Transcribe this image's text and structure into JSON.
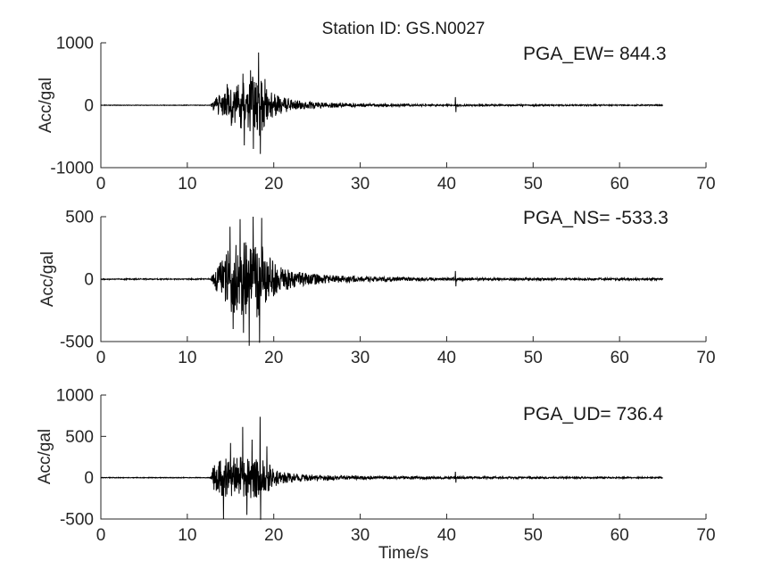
{
  "chart_data": {
    "type": "line",
    "title": "Station ID: GS.N0027",
    "xlabel": "Time/s",
    "xlim": [
      0,
      70
    ],
    "xticks": [
      0,
      10,
      20,
      30,
      40,
      50,
      60,
      70
    ],
    "grid": false,
    "legend": "none",
    "background_color": "#ffffff",
    "axis_color": "#262626",
    "trace_color": "#000000",
    "data_end_time_s": 65,
    "event_onset_time_s": 13,
    "glitch_spike_time_s": 41,
    "sample_dt_s": 0.03,
    "subplots": [
      {
        "id": "EW",
        "ylabel": "Acc/gal",
        "annotation": "PGA_EW= 844.3",
        "pga_gal": 844.3,
        "ylim": [
          -1000,
          1000
        ],
        "yticks": [
          -1000,
          0,
          1000
        ],
        "seed": 11,
        "envelope_t_amp": [
          [
            0,
            4
          ],
          [
            12.7,
            4
          ],
          [
            13,
            80
          ],
          [
            14,
            200
          ],
          [
            14.8,
            300
          ],
          [
            15.5,
            280
          ],
          [
            16.3,
            380
          ],
          [
            17,
            380
          ],
          [
            17.7,
            480
          ],
          [
            18.4,
            560
          ],
          [
            18.8,
            350
          ],
          [
            19.5,
            220
          ],
          [
            20.5,
            150
          ],
          [
            22,
            90
          ],
          [
            24,
            55
          ],
          [
            26,
            40
          ],
          [
            28,
            32
          ],
          [
            30,
            25
          ],
          [
            33,
            20
          ],
          [
            36,
            16
          ],
          [
            40,
            14
          ],
          [
            44,
            12
          ],
          [
            48,
            11
          ],
          [
            55,
            10
          ],
          [
            60,
            9
          ],
          [
            65,
            8
          ]
        ],
        "peaks_t_value": [
          [
            14.6,
            340
          ],
          [
            15.1,
            -330
          ],
          [
            16.45,
            505
          ],
          [
            16.6,
            -643
          ],
          [
            17.3,
            560
          ],
          [
            17.65,
            -700
          ],
          [
            18.25,
            844.3
          ],
          [
            18.45,
            -780
          ],
          [
            19.0,
            420
          ],
          [
            41.0,
            130
          ],
          [
            41.08,
            -110
          ]
        ]
      },
      {
        "id": "NS",
        "ylabel": "Acc/gal",
        "annotation": "PGA_NS= -533.3",
        "pga_gal": -533.3,
        "ylim": [
          -500,
          500
        ],
        "yticks": [
          -500,
          0,
          500
        ],
        "seed": 22,
        "envelope_t_amp": [
          [
            0,
            4
          ],
          [
            12.7,
            4
          ],
          [
            13,
            60
          ],
          [
            14,
            150
          ],
          [
            15,
            260
          ],
          [
            16,
            280
          ],
          [
            17,
            300
          ],
          [
            18,
            310
          ],
          [
            18.7,
            260
          ],
          [
            19.5,
            170
          ],
          [
            20.5,
            110
          ],
          [
            22,
            70
          ],
          [
            24,
            45
          ],
          [
            26,
            33
          ],
          [
            28,
            26
          ],
          [
            30,
            22
          ],
          [
            33,
            17
          ],
          [
            36,
            14
          ],
          [
            40,
            12
          ],
          [
            45,
            10
          ],
          [
            50,
            9
          ],
          [
            55,
            8
          ],
          [
            60,
            8
          ],
          [
            65,
            7
          ]
        ],
        "peaks_t_value": [
          [
            14.95,
            420
          ],
          [
            15.3,
            -400
          ],
          [
            16.1,
            480
          ],
          [
            16.5,
            -430
          ],
          [
            17.15,
            -533.3
          ],
          [
            17.6,
            500
          ],
          [
            18.35,
            -510
          ],
          [
            18.6,
            490
          ],
          [
            41.0,
            65
          ],
          [
            41.08,
            -58
          ]
        ]
      },
      {
        "id": "UD",
        "ylabel": "Acc/gal",
        "annotation": "PGA_UD= 736.4",
        "pga_gal": 736.4,
        "ylim": [
          -500,
          1000
        ],
        "yticks": [
          -500,
          0,
          500,
          1000
        ],
        "seed": 33,
        "envelope_t_amp": [
          [
            0,
            4
          ],
          [
            12.7,
            4
          ],
          [
            13,
            140
          ],
          [
            14,
            220
          ],
          [
            15,
            240
          ],
          [
            16,
            250
          ],
          [
            17,
            250
          ],
          [
            18,
            240
          ],
          [
            19,
            200
          ],
          [
            20,
            110
          ],
          [
            21,
            70
          ],
          [
            22,
            50
          ],
          [
            24,
            38
          ],
          [
            26,
            30
          ],
          [
            28,
            26
          ],
          [
            30,
            22
          ],
          [
            34,
            18
          ],
          [
            38,
            16
          ],
          [
            40,
            14
          ],
          [
            44,
            12
          ],
          [
            48,
            11
          ],
          [
            52,
            10
          ],
          [
            56,
            9
          ],
          [
            60,
            8
          ],
          [
            65,
            7
          ]
        ],
        "peaks_t_value": [
          [
            14.2,
            -500
          ],
          [
            15.0,
            420
          ],
          [
            16.4,
            615
          ],
          [
            16.9,
            -450
          ],
          [
            17.5,
            460
          ],
          [
            18.42,
            736.4
          ],
          [
            18.48,
            -510
          ],
          [
            19.2,
            380
          ],
          [
            41.0,
            72
          ],
          [
            41.08,
            -60
          ]
        ]
      }
    ]
  }
}
